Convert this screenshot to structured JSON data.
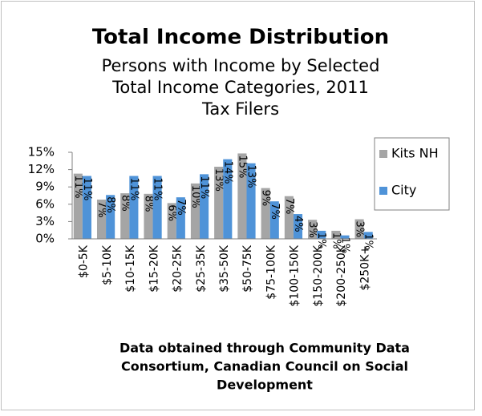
{
  "chart_data": {
    "type": "bar",
    "title": "Total Income Distribution",
    "subtitle": [
      "Persons with Income by Selected",
      "Total Income Categories, 2011",
      "Tax Filers"
    ],
    "note": [
      "Data obtained through Community Data",
      "Consortium, Canadian Council on Social",
      "Development"
    ],
    "categories": [
      "$0-5K",
      "$5-10K",
      "$10-15K",
      "$15-20K",
      "$20-25K",
      "$25-35K",
      "$35-50K",
      "$50-75K",
      "$75-100K",
      "$100-150K",
      "$150-200K",
      "$200-250K",
      "$250K+"
    ],
    "series": [
      {
        "name": "Kits NH",
        "color": "#a5a5a5",
        "values": [
          11.3,
          6.8,
          7.9,
          7.8,
          6.2,
          9.6,
          12.5,
          14.8,
          8.8,
          7.4,
          3.3,
          1.4,
          3.4
        ],
        "value_labels": [
          "11%",
          "7%",
          "8%",
          "8%",
          "6%",
          "10%",
          "13%",
          "15%",
          "9%",
          "7%",
          "3%",
          "1%",
          "3%"
        ]
      },
      {
        "name": "City",
        "color": "#4f93d8",
        "values": [
          10.9,
          7.6,
          10.9,
          10.9,
          7.2,
          11.2,
          13.8,
          13.1,
          6.5,
          4.3,
          1.4,
          0.6,
          1.2
        ],
        "value_labels": [
          "11%",
          "8%",
          "11%",
          "11%",
          "7%",
          "11%",
          "14%",
          "13%",
          "7%",
          "4%",
          "1%",
          "1%",
          "1%"
        ]
      }
    ],
    "ylim": [
      0,
      15
    ],
    "yticks": [
      {
        "value": 0,
        "label": "0%"
      },
      {
        "value": 3,
        "label": "3%"
      },
      {
        "value": 6,
        "label": "6%"
      },
      {
        "value": 9,
        "label": "9%"
      },
      {
        "value": 12,
        "label": "12%"
      },
      {
        "value": 15,
        "label": "15%"
      }
    ],
    "legend": "top-right"
  }
}
